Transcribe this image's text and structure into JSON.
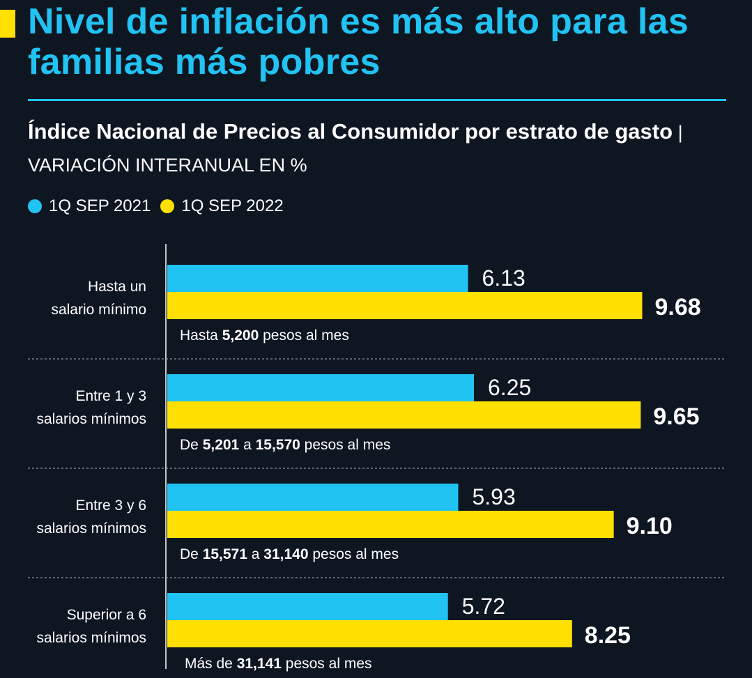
{
  "header": {
    "title": "Nivel de inflación es más alto para las familias más pobres",
    "subtitle_strong": "Índice Nacional de Precios al Consumidor por estrato de gasto",
    "subtitle_sep": " | ",
    "subtitle_light": "VARIACIÓN INTERANUAL EN %"
  },
  "colors": {
    "background": "#0e1622",
    "series_2021": "#21c3f3",
    "series_2022": "#ffe000",
    "accent": "#ffe000"
  },
  "chart_data": {
    "type": "bar",
    "orientation": "horizontal",
    "title": "Índice Nacional de Precios al Consumidor por estrato de gasto",
    "xlabel": "",
    "ylabel": "",
    "grid": false,
    "legend_position": "top-left",
    "categories": [
      [
        "Hasta un",
        "salario mínimo"
      ],
      [
        "Entre 1 y 3",
        "salarios mínimos"
      ],
      [
        "Entre 3 y 6",
        "salarios mínimos"
      ],
      [
        "Superior a 6",
        "salarios mínimos"
      ]
    ],
    "series": [
      {
        "name": "1Q SEP 2021",
        "values": [
          6.13,
          6.25,
          5.93,
          5.72
        ],
        "labels": [
          "6.13",
          "6.25",
          "5.93",
          "5.72"
        ]
      },
      {
        "name": "1Q SEP 2022",
        "values": [
          9.68,
          9.65,
          9.1,
          8.25
        ],
        "labels": [
          "9.68",
          "9.65",
          "9.10",
          "8.25"
        ]
      }
    ],
    "notes": [
      {
        "pre": "Hasta ",
        "a": "5,200",
        "mid": "",
        "b": "",
        "post": " pesos al mes"
      },
      {
        "pre": "De ",
        "a": "5,201",
        "mid": " a ",
        "b": "15,570",
        "post": " pesos al mes"
      },
      {
        "pre": "De ",
        "a": "15,571",
        "mid": " a ",
        "b": "31,140",
        "post": " pesos al mes"
      },
      {
        "pre": "Más de ",
        "a": "31,141",
        "mid": "",
        "b": "",
        "post": " pesos al mes"
      }
    ],
    "xlim": [
      0,
      10
    ]
  }
}
